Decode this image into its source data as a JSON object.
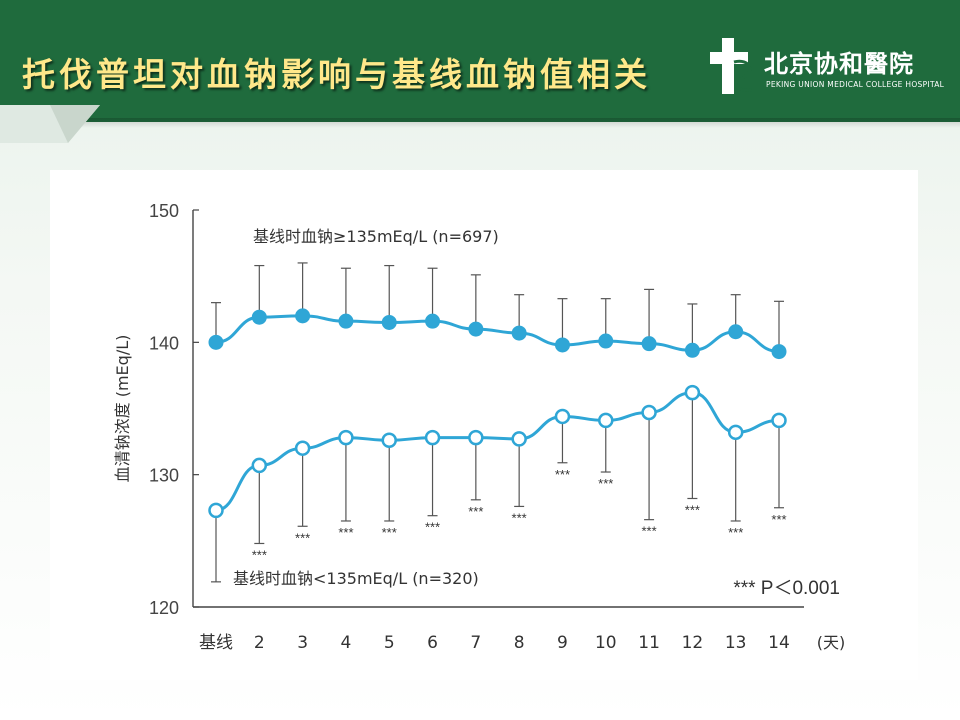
{
  "header": {
    "title": "托伐普坦对血钠影响与基线血钠值相关",
    "logo_name": "北京协和醫院",
    "logo_sub": "PEKING UNION MEDICAL COLLEGE HOSPITAL"
  },
  "colors": {
    "header_bg": "#1f6b3d",
    "title_text": "#ffe88a",
    "series_line": "#2fa6d6",
    "marker_fill_upper": "#2fa6d6",
    "marker_fill_lower": "#ffffff",
    "axis": "#444444"
  },
  "chart_data": {
    "type": "line",
    "ylabel": "血清钠浓度 (mEq/L)",
    "xlabel": "(天)",
    "categories": [
      "基线",
      "2",
      "3",
      "4",
      "5",
      "6",
      "7",
      "8",
      "9",
      "10",
      "11",
      "12",
      "13",
      "14"
    ],
    "ylim": [
      120,
      150
    ],
    "yticks": [
      120,
      130,
      140,
      150
    ],
    "series": [
      {
        "name": "基线时血钠≥135mEq/L (n=697)",
        "marker": "filled",
        "values": [
          140.0,
          141.9,
          142.0,
          141.6,
          141.5,
          141.6,
          141.0,
          140.7,
          139.8,
          140.1,
          139.9,
          139.4,
          140.8,
          139.3
        ],
        "err_upper": [
          143.0,
          145.8,
          146.0,
          145.6,
          145.8,
          145.6,
          145.1,
          143.6,
          143.3,
          143.3,
          144.0,
          142.9,
          143.6,
          143.1
        ]
      },
      {
        "name": "基线时血钠<135mEq/L (n=320)",
        "marker": "open",
        "values": [
          127.3,
          130.7,
          132.0,
          132.8,
          132.6,
          132.8,
          132.8,
          132.7,
          134.4,
          134.1,
          134.7,
          136.2,
          133.2,
          134.1
        ],
        "err_lower": [
          121.9,
          124.8,
          126.1,
          126.5,
          126.5,
          126.9,
          128.1,
          127.6,
          130.9,
          130.2,
          126.6,
          128.2,
          126.5,
          127.5
        ],
        "significance": [
          "",
          "***",
          "***",
          "***",
          "***",
          "***",
          "***",
          "***",
          "***",
          "***",
          "***",
          "***",
          "***",
          "***"
        ]
      }
    ],
    "annotations": [
      "基线时血钠≥135mEq/L (n=697)",
      "基线时血钠<135mEq/L (n=320)"
    ],
    "note": "*** P＜0.001"
  }
}
